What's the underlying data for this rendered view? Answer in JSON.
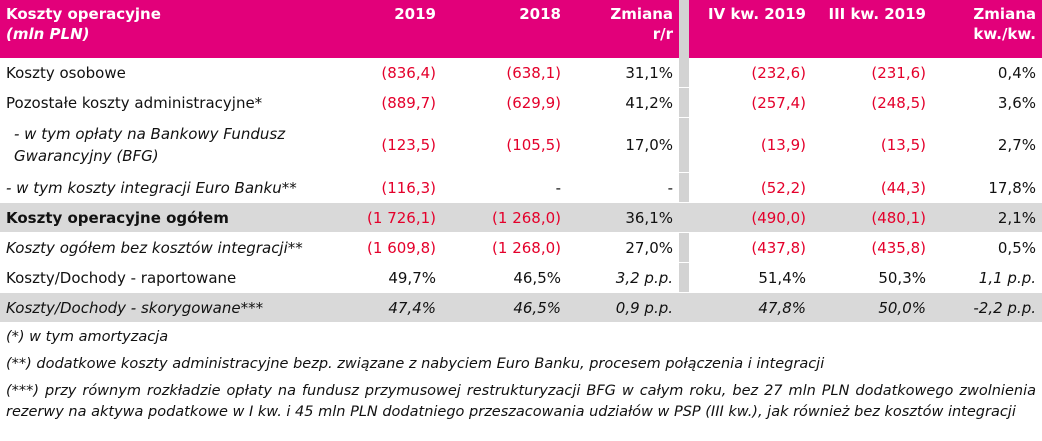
{
  "header": {
    "title": "Koszty operacyjne",
    "unit": "(mln PLN)",
    "col_2019": "2019",
    "col_2018": "2018",
    "col_change_yr_1": "Zmiana",
    "col_change_yr_2": "r/r",
    "col_q4": "IV kw. 2019",
    "col_q3": "III kw. 2019",
    "col_change_q_1": "Zmiana",
    "col_change_q_2": "kw./kw."
  },
  "rows": [
    {
      "label": "Koszty osobowe",
      "v2019": "(836,4)",
      "v2018": "(638,1)",
      "yoy": "31,1%",
      "q4": "(232,6)",
      "q3": "(231,6)",
      "qoq": "0,4%"
    },
    {
      "label": "Pozostałe koszty administracyjne*",
      "v2019": "(889,7)",
      "v2018": "(629,9)",
      "yoy": "41,2%",
      "q4": "(257,4)",
      "q3": "(248,5)",
      "qoq": "3,6%"
    },
    {
      "label": "  - w tym opłaty na Bankowy Fundusz Gwarancyjny (BFG)",
      "v2019": "(123,5)",
      "v2018": "(105,5)",
      "yoy": "17,0%",
      "q4": "(13,9)",
      "q3": "(13,5)",
      "qoq": "2,7%"
    },
    {
      "label": "- w tym koszty integracji Euro Banku**",
      "v2019": "(116,3)",
      "v2018": "-",
      "yoy": "-",
      "q4": "(52,2)",
      "q3": "(44,3)",
      "qoq": "17,8%"
    },
    {
      "label": "Koszty operacyjne ogółem",
      "v2019": "(1 726,1)",
      "v2018": "(1 268,0)",
      "yoy": "36,1%",
      "q4": "(490,0)",
      "q3": "(480,1)",
      "qoq": "2,1%"
    },
    {
      "label": "Koszty ogółem bez kosztów integracji**",
      "v2019": "(1 609,8)",
      "v2018": "(1 268,0)",
      "yoy": "27,0%",
      "q4": "(437,8)",
      "q3": "(435,8)",
      "qoq": "0,5%"
    },
    {
      "label": "Koszty/Dochody - raportowane",
      "v2019": "49,7%",
      "v2018": "46,5%",
      "yoy": "3,2 p.p.",
      "q4": "51,4%",
      "q3": "50,3%",
      "qoq": "1,1 p.p."
    },
    {
      "label": "Koszty/Dochody - skorygowane***",
      "v2019": "47,4%",
      "v2018": "46,5%",
      "yoy": "0,9 p.p.",
      "q4": "47,8%",
      "q3": "50,0%",
      "qoq": "-2,2 p.p."
    }
  ],
  "notes": {
    "n1": "(*) w tym amortyzacja",
    "n2": "(**) dodatkowe koszty administracyjne bezp. związane z nabyciem Euro Banku, procesem połączenia i integracji",
    "n3": "(***) przy równym rozkładzie opłaty na fundusz przymusowej restrukturyzacji BFG w całym roku, bez 27 mln PLN dodatkowego zwolnienia rezerwy na aktywa podatkowe w I kw. i  45 mln PLN dodatniego przeszacowania udziałów w PSP (III kw.), jak również bez kosztów integracji"
  },
  "colors": {
    "header_bg": "#e2007a",
    "negative": "#e4002b",
    "shade": "#d9d9d9",
    "gap": "#d3d3d3"
  }
}
